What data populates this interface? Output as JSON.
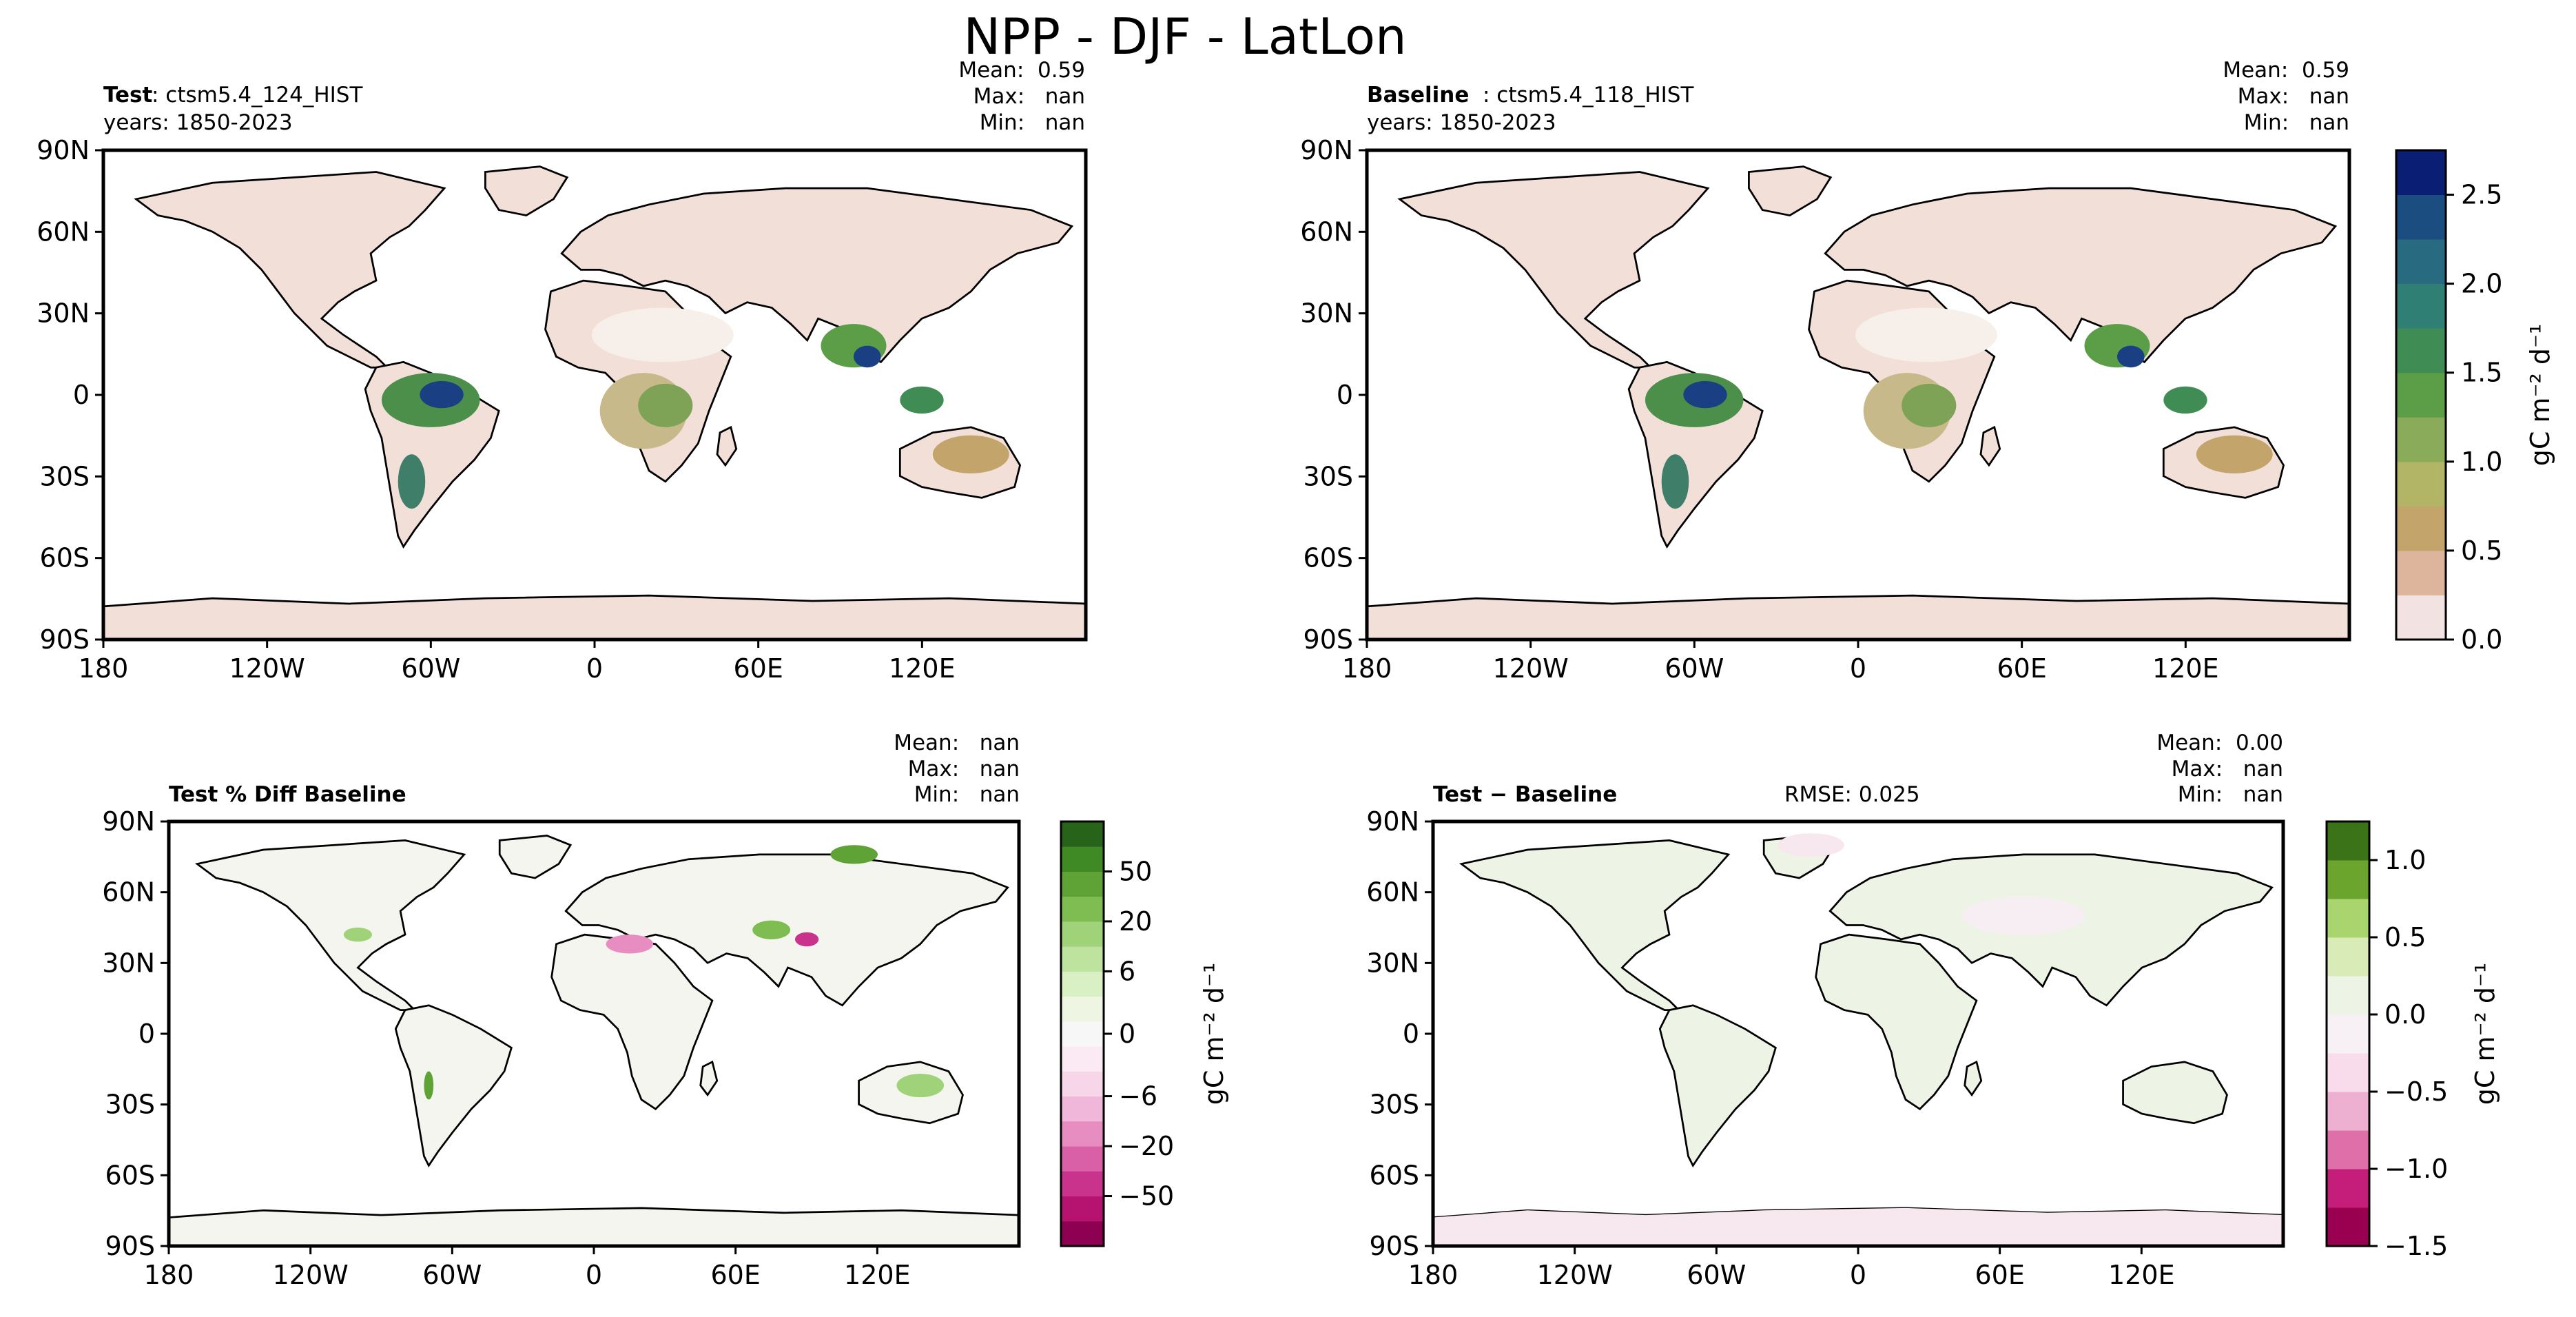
{
  "figure": {
    "title": "NPP - DJF - LatLon"
  },
  "colors": {
    "frame": "#000000",
    "land_low": "#f2dfdf",
    "ocean_fill": "#ffffff",
    "seq_cmap": [
      "#f3e2e2",
      "#dcb59c",
      "#c3a56b",
      "#b2b466",
      "#8aac5a",
      "#5c9e48",
      "#3f8d55",
      "#2f7f74",
      "#286a7f",
      "#1c4d80",
      "#0a1f73"
    ],
    "pct_cmap": [
      "#8e0152",
      "#b5136f",
      "#c9338c",
      "#d95fa7",
      "#e78dc2",
      "#f1b7da",
      "#f7d6ea",
      "#fbeaf3",
      "#f7f7f7",
      "#eef5e3",
      "#d9efc4",
      "#bde39e",
      "#a0d27a",
      "#7fbc52",
      "#5fa336",
      "#3f8a24",
      "#27641a"
    ],
    "diff_cmap": [
      "#99004f",
      "#c41e7a",
      "#de6fa8",
      "#eeb0d1",
      "#f8dcec",
      "#f7f0f4",
      "#eef4e5",
      "#d9ecb8",
      "#a9d46e",
      "#6ba52e",
      "#3a7318"
    ]
  },
  "chart_data": [
    {
      "type": "heatmap",
      "panel": "test",
      "label_bold": "Test",
      "label_text": ": ctsm5.4_124_HIST",
      "years": "years: 1850-2023",
      "stats": {
        "mean": "Mean:  0.59",
        "max": "Max:   nan",
        "min": "Min:   nan"
      },
      "xlabel": "",
      "ylabel": "",
      "xticks": [
        "180",
        "120W",
        "60W",
        "0",
        "60E",
        "120E"
      ],
      "yticks": [
        "90N",
        "60N",
        "30N",
        "0",
        "30S",
        "60S",
        "90S"
      ],
      "xlim": [
        -180,
        180
      ],
      "ylim": [
        -90,
        90
      ],
      "colorbar": "shared-sequential"
    },
    {
      "type": "heatmap",
      "panel": "baseline",
      "label_bold": "Baseline",
      "label_text": ": ctsm5.4_118_HIST",
      "years": "years: 1850-2023",
      "stats": {
        "mean": "Mean:  0.59",
        "max": "Max:   nan",
        "min": "Min:   nan"
      },
      "xticks": [
        "180",
        "120W",
        "60W",
        "0",
        "60E",
        "120E"
      ],
      "yticks": [
        "90N",
        "60N",
        "30N",
        "0",
        "30S",
        "60S",
        "90S"
      ],
      "xlim": [
        -180,
        180
      ],
      "ylim": [
        -90,
        90
      ],
      "colorbar": {
        "label": "gC m⁻² d⁻¹",
        "ticks": [
          "0.0",
          "0.5",
          "1.0",
          "1.5",
          "2.0",
          "2.5"
        ],
        "tick_values": [
          0.0,
          0.5,
          1.0,
          1.5,
          2.0,
          2.5
        ],
        "range": [
          0.0,
          2.75
        ],
        "levels": 11
      }
    },
    {
      "type": "heatmap",
      "panel": "pct-diff",
      "label_bold": "Test % Diff Baseline",
      "stats": {
        "mean": "Mean:   nan",
        "max": "Max:   nan",
        "min": "Min:   nan"
      },
      "xticks": [
        "180",
        "120W",
        "60W",
        "0",
        "60E",
        "120E"
      ],
      "yticks": [
        "90N",
        "60N",
        "30N",
        "0",
        "30S",
        "60S",
        "90S"
      ],
      "xlim": [
        -180,
        180
      ],
      "ylim": [
        -90,
        90
      ],
      "colorbar": {
        "label": "gC m⁻² d⁻¹",
        "ticks": [
          "50",
          "20",
          "6",
          "0",
          "−6",
          "−20",
          "−50"
        ],
        "tick_values": [
          50,
          20,
          6,
          0,
          -6,
          -20,
          -50
        ],
        "levels": 17
      }
    },
    {
      "type": "heatmap",
      "panel": "diff",
      "label_bold": "Test − Baseline",
      "rmse": "RMSE: 0.025",
      "stats": {
        "mean": "Mean:  0.00",
        "max": "Max:   nan",
        "min": "Min:   nan"
      },
      "xticks": [
        "180",
        "120W",
        "60W",
        "0",
        "60E",
        "120E"
      ],
      "yticks": [
        "90N",
        "60N",
        "30N",
        "0",
        "30S",
        "60S",
        "90S"
      ],
      "xlim": [
        -180,
        180
      ],
      "ylim": [
        -90,
        90
      ],
      "colorbar": {
        "label": "gC m⁻² d⁻¹",
        "ticks": [
          "1.0",
          "0.5",
          "0.0",
          "−0.5",
          "−1.0",
          "−1.5"
        ],
        "tick_values": [
          1.0,
          0.5,
          0.0,
          -0.5,
          -1.0,
          -1.5
        ],
        "range": [
          -1.5,
          1.25
        ],
        "levels": 11
      }
    }
  ]
}
